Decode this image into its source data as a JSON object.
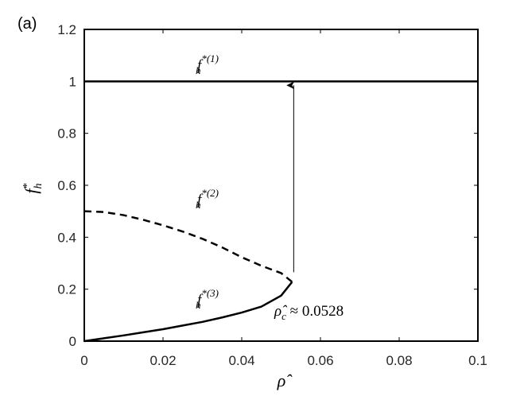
{
  "panel_label": "(a)",
  "chart_data": {
    "type": "line",
    "xlabel": "ρ̂",
    "ylabel": "f*h",
    "xlim": [
      0,
      0.1
    ],
    "ylim": [
      0,
      1.2
    ],
    "xticks": [
      0,
      0.02,
      0.04,
      0.06,
      0.08,
      0.1
    ],
    "xtick_labels": [
      "0",
      "0.02",
      "0.04",
      "0.06",
      "0.08",
      "0.1"
    ],
    "yticks": [
      0,
      0.2,
      0.4,
      0.6,
      0.8,
      1,
      1.2
    ],
    "ytick_labels": [
      "0",
      "0.2",
      "0.4",
      "0.6",
      "0.8",
      "1",
      "1.2"
    ],
    "grid": false,
    "series": [
      {
        "name": "f_h^{*(1)}",
        "style": "solid",
        "color": "#000000",
        "x": [
          0,
          0.1
        ],
        "y": [
          1,
          1
        ]
      },
      {
        "name": "f_h^{*(2)}",
        "style": "dashed",
        "color": "#000000",
        "x": [
          0,
          0.005,
          0.01,
          0.015,
          0.02,
          0.025,
          0.03,
          0.035,
          0.04,
          0.045,
          0.05,
          0.0528
        ],
        "y": [
          0.5,
          0.497,
          0.485,
          0.467,
          0.446,
          0.422,
          0.394,
          0.361,
          0.323,
          0.29,
          0.262,
          0.228
        ]
      },
      {
        "name": "f_h^{*(3)}",
        "style": "solid",
        "color": "#000000",
        "x": [
          0,
          0.005,
          0.01,
          0.015,
          0.02,
          0.025,
          0.03,
          0.035,
          0.04,
          0.045,
          0.05,
          0.0528
        ],
        "y": [
          0,
          0.011,
          0.022,
          0.034,
          0.046,
          0.06,
          0.074,
          0.091,
          0.11,
          0.133,
          0.175,
          0.228
        ]
      }
    ],
    "annotations": [
      {
        "type": "arrow",
        "x": [
          0.0532,
          0.0532
        ],
        "y": [
          0.265,
          0.985
        ]
      },
      {
        "type": "text",
        "text": "ρ̂c ≈ 0.0528"
      }
    ]
  }
}
